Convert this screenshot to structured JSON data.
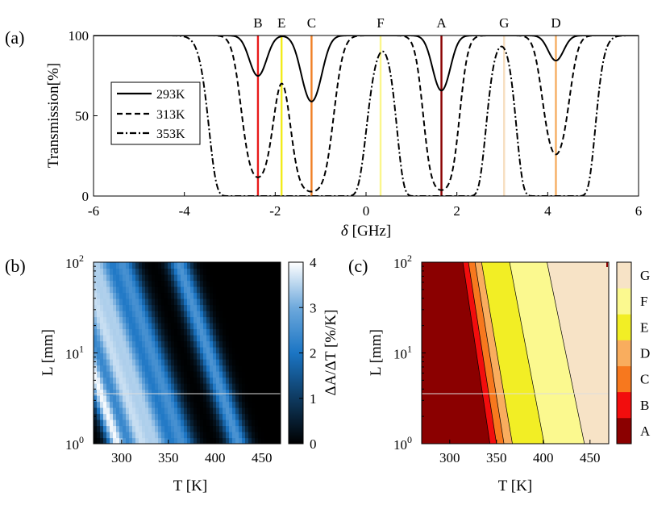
{
  "chart_data": [
    {
      "id": "a",
      "type": "line",
      "panel_label": "(a)",
      "xlabel_symbol": "δ",
      "xlabel_unit": "[GHz]",
      "ylabel": "Transmission[%]",
      "xlim": [
        -6,
        6
      ],
      "ylim": [
        0,
        100
      ],
      "xticks": [
        -6,
        -4,
        -2,
        0,
        2,
        4,
        6
      ],
      "yticks": [
        0,
        50,
        100
      ],
      "legend_position": "left",
      "series": [
        {
          "name": "293K",
          "style": "solid",
          "dips": [
            [
              -2.38,
              0.25,
              0.29
            ],
            [
              -1.2,
              0.28,
              0.53
            ],
            [
              1.66,
              0.25,
              0.42
            ],
            [
              4.18,
              0.23,
              0.17
            ]
          ]
        },
        {
          "name": "313K",
          "style": "dashed",
          "dips": [
            [
              -2.38,
              0.33,
              2.15
            ],
            [
              -1.2,
              0.38,
              3.6
            ],
            [
              1.66,
              0.32,
              3.3
            ],
            [
              4.18,
              0.3,
              1.35
            ]
          ]
        },
        {
          "name": "353K",
          "style": "dashdot",
          "dips": [
            [
              -2.38,
              0.55,
              40
            ],
            [
              -1.2,
              0.6,
              50
            ],
            [
              1.66,
              0.5,
              40
            ],
            [
              4.18,
              0.46,
              30
            ]
          ]
        }
      ],
      "markers": [
        {
          "label": "B",
          "x": -2.38,
          "color": "#e8191a"
        },
        {
          "label": "E",
          "x": -1.86,
          "color": "#f2ec1b"
        },
        {
          "label": "C",
          "x": -1.2,
          "color": "#f07f25"
        },
        {
          "label": "F",
          "x": 0.32,
          "color": "#fbf68c"
        },
        {
          "label": "A",
          "x": 1.66,
          "color": "#8a0000"
        },
        {
          "label": "G",
          "x": 3.04,
          "color": "#f7dfc0"
        },
        {
          "label": "D",
          "x": 4.18,
          "color": "#f6ae62"
        }
      ]
    },
    {
      "id": "b",
      "type": "heatmap",
      "panel_label": "(b)",
      "xlabel": "T [K]",
      "ylabel": "L [mm]",
      "xlim": [
        270,
        470
      ],
      "xticks": [
        300,
        350,
        400,
        450
      ],
      "yscale": "log",
      "ytick_exponents": [
        "0",
        "1",
        "2"
      ],
      "ytick_base": "10",
      "colorbar_label": "ΔA/ΔT [%/K]",
      "colorbar_ticks": [
        0,
        1,
        2,
        3,
        4
      ],
      "colormap": [
        "#000000",
        "#0e3a60",
        "#1b75c4",
        "#6ea9dc",
        "#ffffff"
      ]
    },
    {
      "id": "c",
      "type": "contour",
      "panel_label": "(c)",
      "xlabel": "T [K]",
      "ylabel": "L [mm]",
      "xlim": [
        270,
        470
      ],
      "xticks": [
        300,
        350,
        400,
        450
      ],
      "yscale": "log",
      "ytick_exponents": [
        "0",
        "1",
        "2"
      ],
      "ytick_base": "10",
      "regions": [
        "A",
        "B",
        "C",
        "D",
        "E",
        "F",
        "G"
      ],
      "region_colors": [
        "#8b0000",
        "#f20d0d",
        "#f7781e",
        "#f9ad5e",
        "#f2ee25",
        "#fbf98f",
        "#f7e3c6"
      ],
      "boundaries_T_at_L1": [
        341,
        343,
        350,
        358,
        367,
        401,
        444
      ],
      "boundaries_T_at_L100": [
        312,
        314,
        320,
        327,
        334,
        364,
        404
      ]
    }
  ]
}
